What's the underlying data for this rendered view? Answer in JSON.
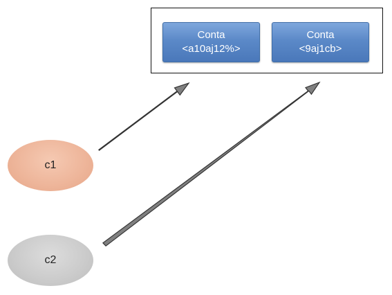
{
  "accounts": [
    {
      "label": "Conta",
      "id": "<a10aj12%>"
    },
    {
      "label": "Conta",
      "id": "<9aj1cb>"
    }
  ],
  "clients": [
    {
      "label": "c1",
      "color": "#eeb69b"
    },
    {
      "label": "c2",
      "color": "#cccccc"
    }
  ],
  "arrows": [
    {
      "from": "c1",
      "to": "<a10aj12%>"
    },
    {
      "from": "c2",
      "to": "<9aj1cb>"
    }
  ],
  "colors": {
    "account_fill": "#5b89c8",
    "arrow_fill": "#808080",
    "arrow_stroke": "#333333"
  }
}
